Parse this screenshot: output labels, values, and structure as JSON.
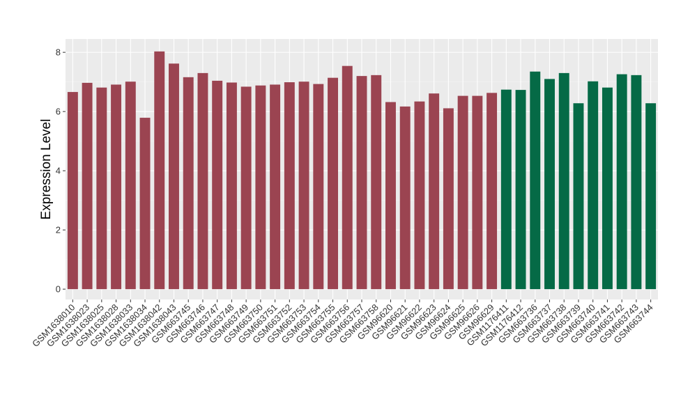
{
  "chart_data": {
    "type": "bar",
    "ylabel": "Expression Level",
    "xlabel": "",
    "ylim": [
      -0.35,
      8.45
    ],
    "yticks": [
      0,
      2,
      4,
      6,
      8
    ],
    "grid": true,
    "background": "#ebebeb",
    "colors": {
      "group1": "#9b4451",
      "group2": "#056a46"
    },
    "categories": [
      "GSM1638010",
      "GSM1638023",
      "GSM1638025",
      "GSM1638028",
      "GSM1638033",
      "GSM1638034",
      "GSM1638042",
      "GSM1638043",
      "GSM663745",
      "GSM663746",
      "GSM663747",
      "GSM663748",
      "GSM663749",
      "GSM663750",
      "GSM663751",
      "GSM663752",
      "GSM663753",
      "GSM663754",
      "GSM663755",
      "GSM663756",
      "GSM663757",
      "GSM663758",
      "GSM96620",
      "GSM96621",
      "GSM96622",
      "GSM96623",
      "GSM96624",
      "GSM96625",
      "GSM96626",
      "GSM96629",
      "GSM1176411",
      "GSM1176412",
      "GSM663736",
      "GSM663737",
      "GSM663738",
      "GSM663739",
      "GSM663740",
      "GSM663741",
      "GSM663742",
      "GSM663743",
      "GSM663744"
    ],
    "values": [
      6.66,
      6.97,
      6.81,
      6.91,
      7.01,
      5.79,
      8.03,
      7.62,
      7.16,
      7.3,
      7.04,
      6.98,
      6.84,
      6.88,
      6.91,
      6.99,
      7.01,
      6.93,
      7.14,
      7.54,
      7.2,
      7.23,
      6.32,
      6.17,
      6.34,
      6.61,
      6.11,
      6.53,
      6.53,
      6.63,
      6.74,
      6.73,
      7.35,
      7.1,
      7.3,
      6.28,
      7.02,
      6.81,
      7.26,
      7.23,
      6.28
    ],
    "groups": [
      "group1",
      "group1",
      "group1",
      "group1",
      "group1",
      "group1",
      "group1",
      "group1",
      "group1",
      "group1",
      "group1",
      "group1",
      "group1",
      "group1",
      "group1",
      "group1",
      "group1",
      "group1",
      "group1",
      "group1",
      "group1",
      "group1",
      "group1",
      "group1",
      "group1",
      "group1",
      "group1",
      "group1",
      "group1",
      "group1",
      "group2",
      "group2",
      "group2",
      "group2",
      "group2",
      "group2",
      "group2",
      "group2",
      "group2",
      "group2",
      "group2"
    ]
  }
}
